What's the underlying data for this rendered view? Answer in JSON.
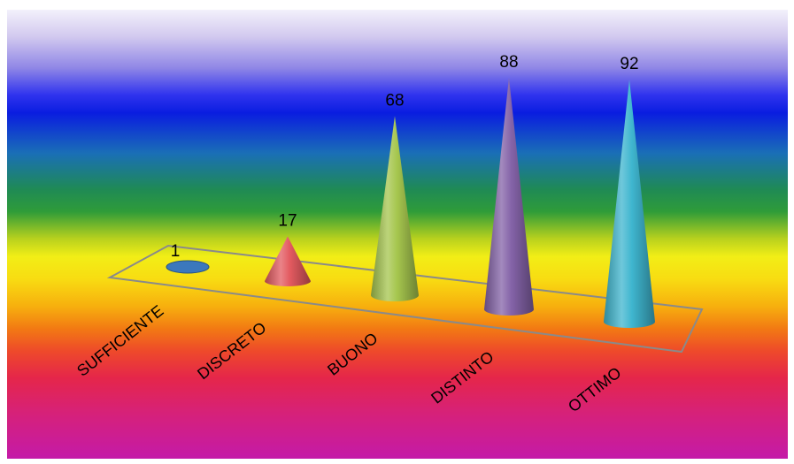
{
  "chart_data": {
    "type": "bar",
    "shape": "cone",
    "categories": [
      "SUFFICIENTE",
      "DISCRETO",
      "BUONO",
      "DISTINTO",
      "OTTIMO"
    ],
    "values": [
      1,
      17,
      68,
      88,
      92
    ],
    "data_labels": [
      "1",
      "17",
      "68",
      "88",
      "92"
    ],
    "colors": [
      "#3b78bd",
      "#e35a60",
      "#a6c64e",
      "#8463a8",
      "#3fb6cf"
    ],
    "legend": "none",
    "grid": false
  }
}
